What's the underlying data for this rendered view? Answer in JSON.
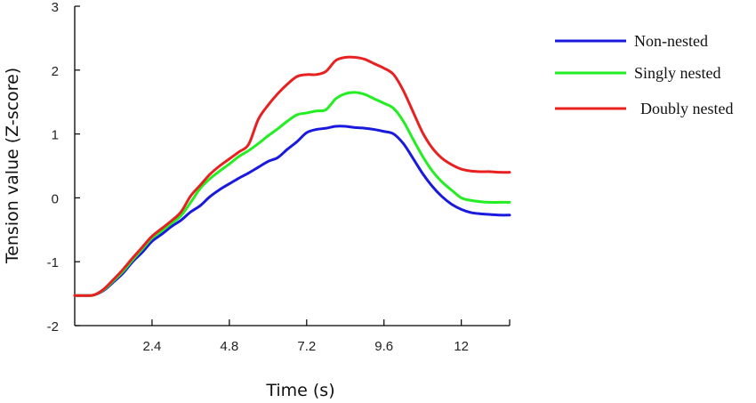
{
  "chart_data": {
    "type": "line",
    "title": "",
    "xlabel": "Time (s)",
    "ylabel": "Tension value (Z-score)",
    "xlim": [
      0,
      13.5
    ],
    "ylim": [
      -2,
      3
    ],
    "xticks": [
      2.4,
      4.8,
      7.2,
      9.6,
      12
    ],
    "xtick_labels": [
      "2.4",
      "4.8",
      "7.2",
      "9.6",
      "12"
    ],
    "yticks": [
      -2,
      -1,
      0,
      1,
      2,
      3
    ],
    "ytick_labels": [
      "-2",
      "-1",
      "0",
      "1",
      "2",
      "3"
    ],
    "grid": false,
    "legend_position": "top-right",
    "x": [
      0,
      0.3,
      0.6,
      0.9,
      1.2,
      1.5,
      1.8,
      2.1,
      2.4,
      2.7,
      3.0,
      3.3,
      3.6,
      3.9,
      4.2,
      4.5,
      4.8,
      5.1,
      5.4,
      5.7,
      6.0,
      6.3,
      6.6,
      6.9,
      7.2,
      7.5,
      7.8,
      8.1,
      8.4,
      8.7,
      9.0,
      9.3,
      9.6,
      9.9,
      10.2,
      10.5,
      10.8,
      11.1,
      11.4,
      11.7,
      12.0,
      12.3,
      12.6,
      12.9,
      13.2,
      13.5
    ],
    "series": [
      {
        "name": "Non-nested",
        "color": "#1a1adf",
        "values": [
          -1.53,
          -1.53,
          -1.52,
          -1.45,
          -1.32,
          -1.18,
          -1.0,
          -0.85,
          -0.68,
          -0.57,
          -0.45,
          -0.35,
          -0.22,
          -0.12,
          0.02,
          0.13,
          0.22,
          0.31,
          0.39,
          0.48,
          0.57,
          0.63,
          0.76,
          0.88,
          1.02,
          1.07,
          1.09,
          1.12,
          1.12,
          1.1,
          1.09,
          1.07,
          1.04,
          1.0,
          0.85,
          0.62,
          0.38,
          0.18,
          0.02,
          -0.1,
          -0.18,
          -0.23,
          -0.25,
          -0.26,
          -0.27,
          -0.27
        ]
      },
      {
        "name": "Singly nested",
        "color": "#22ee22",
        "values": [
          -1.53,
          -1.53,
          -1.52,
          -1.44,
          -1.3,
          -1.15,
          -0.97,
          -0.8,
          -0.63,
          -0.52,
          -0.4,
          -0.28,
          -0.07,
          0.15,
          0.3,
          0.42,
          0.53,
          0.65,
          0.74,
          0.85,
          0.97,
          1.08,
          1.2,
          1.3,
          1.33,
          1.36,
          1.38,
          1.55,
          1.63,
          1.65,
          1.62,
          1.55,
          1.48,
          1.4,
          1.2,
          0.92,
          0.65,
          0.42,
          0.25,
          0.12,
          0.0,
          -0.04,
          -0.06,
          -0.07,
          -0.07,
          -0.07
        ]
      },
      {
        "name": "Doubly nested",
        "color": "#e82020",
        "values": [
          -1.53,
          -1.53,
          -1.52,
          -1.43,
          -1.28,
          -1.12,
          -0.94,
          -0.77,
          -0.6,
          -0.48,
          -0.36,
          -0.22,
          0.03,
          0.2,
          0.37,
          0.5,
          0.61,
          0.72,
          0.84,
          1.23,
          1.45,
          1.63,
          1.78,
          1.9,
          1.93,
          1.93,
          1.98,
          2.15,
          2.2,
          2.2,
          2.17,
          2.1,
          2.03,
          1.93,
          1.68,
          1.35,
          1.02,
          0.78,
          0.62,
          0.52,
          0.45,
          0.42,
          0.41,
          0.41,
          0.4,
          0.4
        ]
      }
    ]
  }
}
